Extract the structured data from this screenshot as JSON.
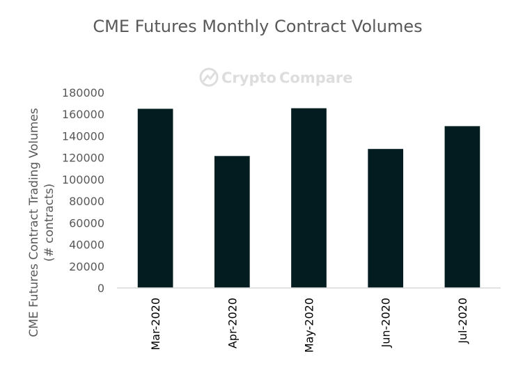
{
  "chart_data": {
    "type": "bar",
    "title": "CME Futures Monthly Contract Volumes",
    "ylabel_lines": [
      "CME Futures Contract Trading Volumes",
      "(# contracts)"
    ],
    "xlabel": "",
    "categories": [
      "Mar-2020",
      "Apr-2020",
      "May-2020",
      "Jun-2020",
      "Jul-2020"
    ],
    "values": [
      165000,
      121500,
      165500,
      128000,
      149000
    ],
    "ylim": [
      0,
      180000
    ],
    "yticks": [
      0,
      20000,
      40000,
      60000,
      80000,
      100000,
      120000,
      140000,
      160000,
      180000
    ],
    "bar_color": "#031c1f",
    "grid": false,
    "legend": "none"
  },
  "watermark": {
    "text_a": "Crypto",
    "text_b": "Compare",
    "icon": "cryptocompare-logo-icon"
  }
}
